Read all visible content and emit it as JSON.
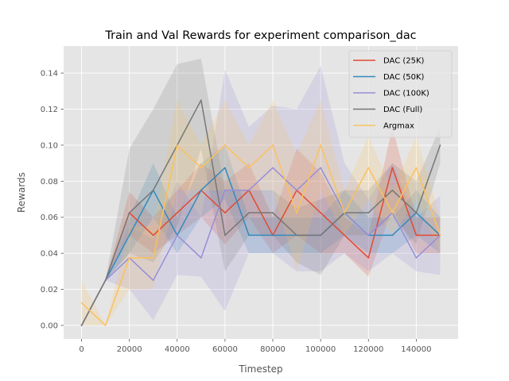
{
  "chart_data": {
    "type": "line",
    "title": "Train and Val Rewards for experiment comparison_dac",
    "xlabel": "Timestep",
    "ylabel": "Rewards",
    "xlim": [
      -7500,
      157500
    ],
    "ylim": [
      -0.0075,
      0.155
    ],
    "xticks": [
      0,
      20000,
      40000,
      60000,
      80000,
      100000,
      120000,
      140000
    ],
    "yticks": [
      0.0,
      0.02,
      0.04,
      0.06,
      0.08,
      0.1,
      0.12,
      0.14
    ],
    "grid": true,
    "legend_position": "top-right",
    "x": [
      0,
      10000,
      20000,
      30000,
      40000,
      50000,
      60000,
      70000,
      80000,
      90000,
      100000,
      110000,
      120000,
      130000,
      140000,
      150000
    ],
    "series": [
      {
        "name": "DAC (25K)",
        "color": "#E24A33",
        "values": [
          0,
          0.025,
          0.0625,
          0.05,
          0.0625,
          0.075,
          0.0625,
          0.075,
          0.05,
          0.075,
          0.0625,
          0.05,
          0.0375,
          0.0875,
          0.05,
          0.05
        ],
        "band_low": [
          0,
          0.025,
          0.05,
          0.04,
          0.05,
          0.06,
          0.045,
          0.06,
          0.04,
          0.05,
          0.04,
          0.04,
          0.027,
          0.065,
          0.04,
          0.04
        ],
        "band_high": [
          0,
          0.025,
          0.074,
          0.06,
          0.075,
          0.09,
          0.08,
          0.09,
          0.06,
          0.098,
          0.085,
          0.06,
          0.05,
          0.11,
          0.06,
          0.06
        ]
      },
      {
        "name": "DAC (50K)",
        "color": "#348ABD",
        "values": [
          0,
          0.025,
          0.05,
          0.075,
          0.05,
          0.075,
          0.0875,
          0.05,
          0.05,
          0.05,
          0.05,
          0.0625,
          0.05,
          0.05,
          0.0625,
          0.05
        ],
        "band_low": [
          0,
          0.025,
          0.04,
          0.06,
          0.04,
          0.06,
          0.07,
          0.04,
          0.04,
          0.04,
          0.04,
          0.05,
          0.04,
          0.04,
          0.05,
          0.04
        ],
        "band_high": [
          0,
          0.025,
          0.06,
          0.09,
          0.06,
          0.09,
          0.1,
          0.06,
          0.06,
          0.06,
          0.06,
          0.075,
          0.06,
          0.06,
          0.075,
          0.06
        ]
      },
      {
        "name": "DAC (100K)",
        "color": "#988ED5",
        "values": [
          0,
          0.025,
          0.0375,
          0.025,
          0.05,
          0.0375,
          0.075,
          0.075,
          0.0875,
          0.075,
          0.0875,
          0.0625,
          0.05,
          0.0625,
          0.0375,
          0.05
        ],
        "band_low": [
          0,
          0.025,
          0.02,
          0.003,
          0.028,
          0.027,
          0.008,
          0.04,
          0.04,
          0.03,
          0.03,
          0.04,
          0.03,
          0.04,
          0.03,
          0.028
        ],
        "band_high": [
          0,
          0.025,
          0.055,
          0.048,
          0.08,
          0.06,
          0.142,
          0.11,
          0.122,
          0.12,
          0.144,
          0.09,
          0.07,
          0.09,
          0.06,
          0.072
        ]
      },
      {
        "name": "DAC (Full)",
        "color": "#777777",
        "values": [
          0,
          0.025,
          0.0625,
          0.075,
          0.1,
          0.125,
          0.05,
          0.0625,
          0.0625,
          0.05,
          0.05,
          0.0625,
          0.0625,
          0.075,
          0.0625,
          0.1
        ],
        "band_low": [
          0,
          0.025,
          0.04,
          0.035,
          0.055,
          0.098,
          0.03,
          0.05,
          0.05,
          0.035,
          0.028,
          0.05,
          0.05,
          0.06,
          0.045,
          0.09
        ],
        "band_high": [
          0,
          0.025,
          0.098,
          0.12,
          0.145,
          0.148,
          0.075,
          0.075,
          0.075,
          0.065,
          0.07,
          0.075,
          0.075,
          0.09,
          0.08,
          0.11
        ]
      },
      {
        "name": "Argmax",
        "color": "#FBC15E",
        "values": [
          0.0125,
          0,
          0.0375,
          0.0375,
          0.1,
          0.0875,
          0.1,
          0.0875,
          0.1,
          0.0625,
          0.1,
          0.0625,
          0.0875,
          0.0625,
          0.0875,
          0.05
        ],
        "band_low": [
          0,
          0,
          0.02,
          0.02,
          0.075,
          0.075,
          0.075,
          0.075,
          0.075,
          0.03,
          0.075,
          0.05,
          0.07,
          0.05,
          0.07,
          0.04
        ],
        "band_high": [
          0.025,
          0,
          0.055,
          0.055,
          0.125,
          0.1,
          0.125,
          0.1,
          0.125,
          0.095,
          0.125,
          0.075,
          0.105,
          0.075,
          0.105,
          0.06
        ]
      }
    ]
  }
}
